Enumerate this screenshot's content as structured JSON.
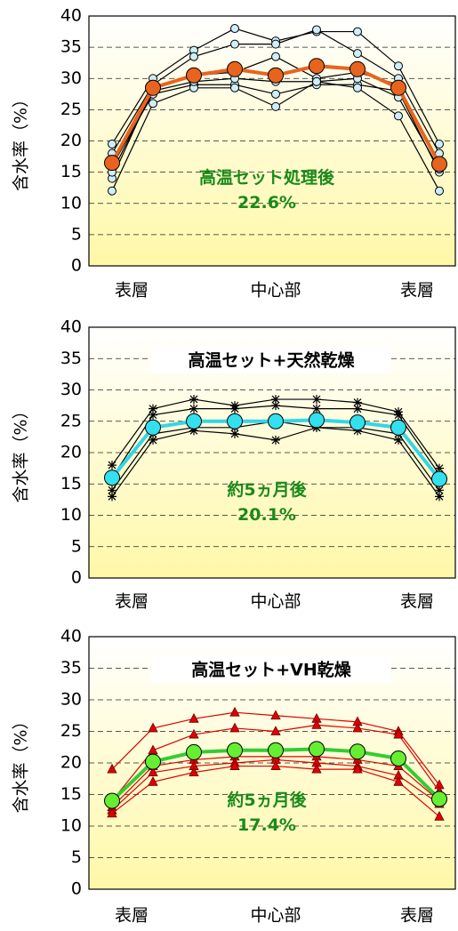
{
  "chart_data": [
    {
      "type": "line",
      "ylabel": "含水率（%）",
      "annotation": [
        "高温セット処理後",
        "22.6%"
      ],
      "categories": [
        "表層",
        null,
        null,
        null,
        "中心部",
        null,
        null,
        null,
        "表層"
      ],
      "ylim": [
        0,
        40
      ],
      "yticks": [
        0,
        5,
        10,
        15,
        20,
        25,
        30,
        35,
        40
      ],
      "grid": true,
      "series": [
        {
          "color": "#000000",
          "marker_color": "#cdeefa",
          "marker": "circle",
          "values": [
            19.5,
            30,
            34.5,
            38,
            36,
            37.5,
            37.5,
            32,
            19.5
          ]
        },
        {
          "color": "#000000",
          "marker_color": "#cdeefa",
          "marker": "circle",
          "values": [
            18,
            29,
            33.5,
            35.5,
            35.5,
            37.8,
            34,
            30,
            18
          ]
        },
        {
          "color": "#000000",
          "marker_color": "#cdeefa",
          "marker": "circle",
          "values": [
            14,
            28.5,
            30.5,
            31,
            33.5,
            30,
            31,
            29,
            16
          ]
        },
        {
          "color": "#000000",
          "marker_color": "#cdeefa",
          "marker": "circle",
          "values": [
            16,
            27.5,
            29,
            29,
            27.5,
            29,
            29,
            28,
            15
          ]
        },
        {
          "color": "#000000",
          "marker_color": "#cdeefa",
          "marker": "circle",
          "values": [
            12,
            26,
            28.5,
            28.5,
            25.5,
            29.5,
            28.5,
            24,
            12
          ]
        },
        {
          "color": "#000000",
          "marker_color": "#cdeefa",
          "marker": "circle",
          "values": [
            15,
            28,
            29.5,
            30,
            29.5,
            29.5,
            30,
            27,
            15.5
          ]
        },
        {
          "color": "#e8641e",
          "marker_color": "#e8641e",
          "marker": "large-circle",
          "values": [
            16.5,
            28.5,
            30.5,
            31.5,
            30.5,
            32,
            31.5,
            28.5,
            16.3
          ]
        }
      ]
    },
    {
      "type": "line",
      "title": "高温セット+天然乾燥",
      "ylabel": "含水率（%）",
      "annotation": [
        "約5ヵ月後",
        "20.1%"
      ],
      "categories": [
        "表層",
        null,
        null,
        null,
        "中心部",
        null,
        null,
        null,
        "表層"
      ],
      "ylim": [
        0,
        40
      ],
      "yticks": [
        0,
        5,
        10,
        15,
        20,
        25,
        30,
        35,
        40
      ],
      "grid": true,
      "series": [
        {
          "color": "#000000",
          "marker_color": "#000000",
          "marker": "asterisk",
          "values": [
            18,
            27,
            28.5,
            27.5,
            28.5,
            28.5,
            28,
            26.5,
            17.5
          ]
        },
        {
          "color": "#000000",
          "marker_color": "#000000",
          "marker": "asterisk",
          "values": [
            16,
            26,
            27,
            27,
            27.5,
            27,
            27,
            26,
            16.5
          ]
        },
        {
          "color": "#000000",
          "marker_color": "#000000",
          "marker": "asterisk",
          "values": [
            14,
            23,
            24,
            24,
            25,
            24,
            24,
            23,
            14
          ]
        },
        {
          "color": "#000000",
          "marker_color": "#000000",
          "marker": "asterisk",
          "values": [
            13,
            22,
            23.5,
            23,
            22,
            24,
            23.5,
            22,
            13
          ]
        },
        {
          "color": "#33d6e6",
          "marker_color": "#33e0ee",
          "marker": "large-circle",
          "values": [
            16,
            24,
            25,
            25,
            25,
            25.2,
            24.8,
            24,
            15.8
          ]
        }
      ]
    },
    {
      "type": "line",
      "title": "高温セット+VH乾燥",
      "ylabel": "含水率（%）",
      "annotation": [
        "約5ヵ月後",
        "17.4%"
      ],
      "categories": [
        "表層",
        null,
        null,
        null,
        "中心部",
        null,
        null,
        null,
        "表層"
      ],
      "ylim": [
        0,
        40
      ],
      "yticks": [
        0,
        5,
        10,
        15,
        20,
        25,
        30,
        35,
        40
      ],
      "grid": true,
      "series": [
        {
          "color": "#e00000",
          "marker_color": "#e00000",
          "marker": "triangle",
          "values": [
            19,
            25.5,
            27,
            28,
            27.5,
            27,
            26.5,
            25,
            16.5
          ]
        },
        {
          "color": "#e00000",
          "marker_color": "#e00000",
          "marker": "triangle",
          "values": [
            14,
            22,
            24.5,
            25.5,
            25,
            26,
            25.5,
            24.5,
            15.5
          ]
        },
        {
          "color": "#e00000",
          "marker_color": "#e00000",
          "marker": "triangle",
          "values": [
            13,
            19.5,
            20.5,
            21,
            21,
            21,
            20.5,
            19.5,
            14
          ]
        },
        {
          "color": "#e00000",
          "marker_color": "#e00000",
          "marker": "triangle",
          "values": [
            12.5,
            18.5,
            19.5,
            20,
            20.5,
            20,
            19.5,
            18,
            13.5
          ]
        },
        {
          "color": "#e00000",
          "marker_color": "#e00000",
          "marker": "triangle",
          "values": [
            12,
            17,
            18.5,
            19.5,
            19.5,
            19,
            19,
            17,
            11.5
          ]
        },
        {
          "color": "#33cc33",
          "marker_color": "#66ee33",
          "marker": "large-circle",
          "values": [
            14,
            20.2,
            21.7,
            22,
            22,
            22.2,
            21.8,
            20.7,
            14.3
          ]
        }
      ]
    }
  ]
}
